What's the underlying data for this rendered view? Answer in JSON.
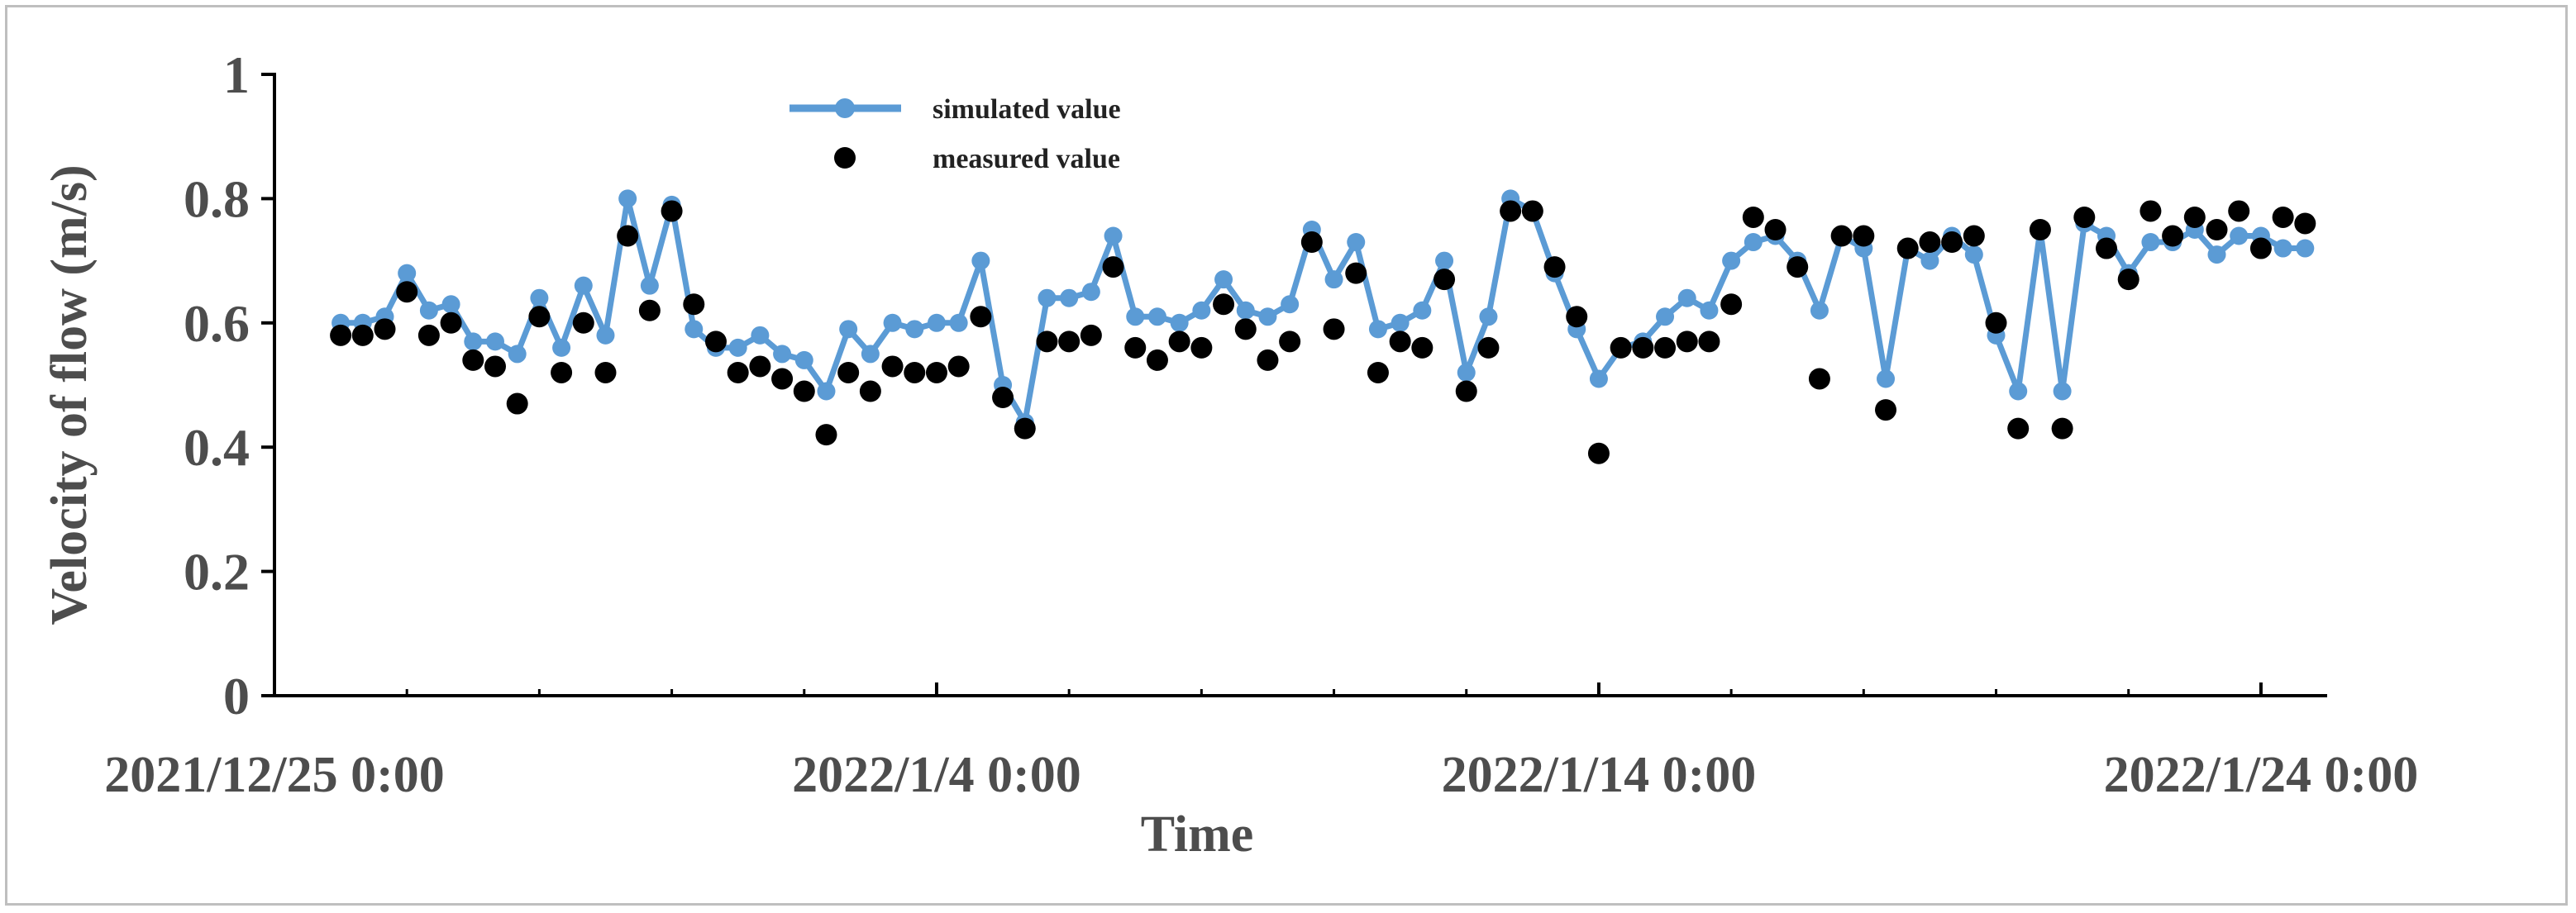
{
  "chart_data": {
    "type": "line",
    "title": "",
    "xlabel": "Time",
    "ylabel": "Velocity of flow (m/s)",
    "ylim": [
      0,
      1
    ],
    "yticks": [
      "0",
      "0.2",
      "0.4",
      "0.6",
      "0.8",
      "1"
    ],
    "xlim": [
      "2021/12/25 0:00",
      "2022/1/25 0:00"
    ],
    "xticks": [
      "2021/12/25 0:00",
      "2022/1/4 0:00",
      "2022/1/14 0:00",
      "2022/1/24 0:00"
    ],
    "grid": false,
    "legend_position": "top-center",
    "x": [
      "2021/12/26 0:00",
      "2021/12/26 8:00",
      "2021/12/26 16:00",
      "2021/12/27 0:00",
      "2021/12/27 8:00",
      "2021/12/27 16:00",
      "2021/12/28 0:00",
      "2021/12/28 8:00",
      "2021/12/28 16:00",
      "2021/12/29 0:00",
      "2021/12/29 8:00",
      "2021/12/29 16:00",
      "2021/12/30 0:00",
      "2021/12/30 8:00",
      "2021/12/30 16:00",
      "2021/12/31 0:00",
      "2021/12/31 8:00",
      "2021/12/31 16:00",
      "2022/1/1 0:00",
      "2022/1/1 8:00",
      "2022/1/1 16:00",
      "2022/1/2 0:00",
      "2022/1/2 8:00",
      "2022/1/2 16:00",
      "2022/1/3 0:00",
      "2022/1/3 8:00",
      "2022/1/3 16:00",
      "2022/1/4 0:00",
      "2022/1/4 8:00",
      "2022/1/4 16:00",
      "2022/1/5 0:00",
      "2022/1/5 8:00",
      "2022/1/5 16:00",
      "2022/1/6 0:00",
      "2022/1/6 8:00",
      "2022/1/6 16:00",
      "2022/1/7 0:00",
      "2022/1/7 8:00",
      "2022/1/7 16:00",
      "2022/1/8 0:00",
      "2022/1/8 8:00",
      "2022/1/8 16:00",
      "2022/1/9 0:00",
      "2022/1/9 8:00",
      "2022/1/9 16:00",
      "2022/1/10 0:00",
      "2022/1/10 8:00",
      "2022/1/10 16:00",
      "2022/1/11 0:00",
      "2022/1/11 8:00",
      "2022/1/11 16:00",
      "2022/1/12 0:00",
      "2022/1/12 8:00",
      "2022/1/12 16:00",
      "2022/1/13 0:00",
      "2022/1/13 8:00",
      "2022/1/13 16:00",
      "2022/1/14 0:00",
      "2022/1/14 8:00",
      "2022/1/14 16:00",
      "2022/1/15 0:00",
      "2022/1/15 8:00",
      "2022/1/15 16:00",
      "2022/1/16 0:00",
      "2022/1/16 8:00",
      "2022/1/16 16:00",
      "2022/1/17 0:00",
      "2022/1/17 8:00",
      "2022/1/17 16:00",
      "2022/1/18 0:00",
      "2022/1/18 8:00",
      "2022/1/18 16:00",
      "2022/1/19 0:00",
      "2022/1/19 8:00",
      "2022/1/19 16:00",
      "2022/1/20 0:00",
      "2022/1/20 8:00",
      "2022/1/20 16:00",
      "2022/1/21 0:00",
      "2022/1/21 8:00",
      "2022/1/21 16:00",
      "2022/1/22 0:00",
      "2022/1/22 8:00",
      "2022/1/22 16:00",
      "2022/1/23 0:00",
      "2022/1/23 8:00",
      "2022/1/23 16:00",
      "2022/1/24 0:00",
      "2022/1/24 8:00",
      "2022/1/24 16:00"
    ],
    "series": [
      {
        "name": "simulated value",
        "style": "line-with-markers",
        "color": "#5b9bd5",
        "values": [
          0.6,
          0.6,
          0.61,
          0.68,
          0.62,
          0.63,
          0.57,
          0.57,
          0.55,
          0.64,
          0.56,
          0.66,
          0.58,
          0.8,
          0.66,
          0.79,
          0.59,
          0.56,
          0.56,
          0.58,
          0.55,
          0.54,
          0.49,
          0.59,
          0.55,
          0.6,
          0.59,
          0.6,
          0.6,
          0.7,
          0.5,
          0.44,
          0.64,
          0.64,
          0.65,
          0.74,
          0.61,
          0.61,
          0.6,
          0.62,
          0.67,
          0.62,
          0.61,
          0.63,
          0.75,
          0.67,
          0.73,
          0.59,
          0.6,
          0.62,
          0.7,
          0.52,
          0.61,
          0.8,
          0.78,
          0.68,
          0.59,
          0.51,
          0.56,
          0.57,
          0.61,
          0.64,
          0.62,
          0.7,
          0.73,
          0.74,
          0.7,
          0.62,
          0.74,
          0.72,
          0.51,
          0.72,
          0.7,
          0.74,
          0.71,
          0.58,
          0.49,
          0.75,
          0.49,
          0.76,
          0.74,
          0.68,
          0.73,
          0.73,
          0.75,
          0.71,
          0.74,
          0.74,
          0.72,
          0.72
        ]
      },
      {
        "name": "measured value",
        "style": "markers",
        "color": "#000000",
        "values": [
          0.58,
          0.58,
          0.59,
          0.65,
          0.58,
          0.6,
          0.54,
          0.53,
          0.47,
          0.61,
          0.52,
          0.6,
          0.52,
          0.74,
          0.62,
          0.78,
          0.63,
          0.57,
          0.52,
          0.53,
          0.51,
          0.49,
          0.42,
          0.52,
          0.49,
          0.53,
          0.52,
          0.52,
          0.53,
          0.61,
          0.48,
          0.43,
          0.57,
          0.57,
          0.58,
          0.69,
          0.56,
          0.54,
          0.57,
          0.56,
          0.63,
          0.59,
          0.54,
          0.57,
          0.73,
          0.59,
          0.68,
          0.52,
          0.57,
          0.56,
          0.67,
          0.49,
          0.56,
          0.78,
          0.78,
          0.69,
          0.61,
          0.39,
          0.56,
          0.56,
          0.56,
          0.57,
          0.57,
          0.63,
          0.77,
          0.75,
          0.69,
          0.51,
          0.74,
          0.74,
          0.46,
          0.72,
          0.73,
          0.73,
          0.74,
          0.6,
          0.43,
          0.75,
          0.43,
          0.77,
          0.72,
          0.67,
          0.78,
          0.74,
          0.77,
          0.75,
          0.78,
          0.72,
          0.77,
          0.76
        ]
      }
    ]
  }
}
